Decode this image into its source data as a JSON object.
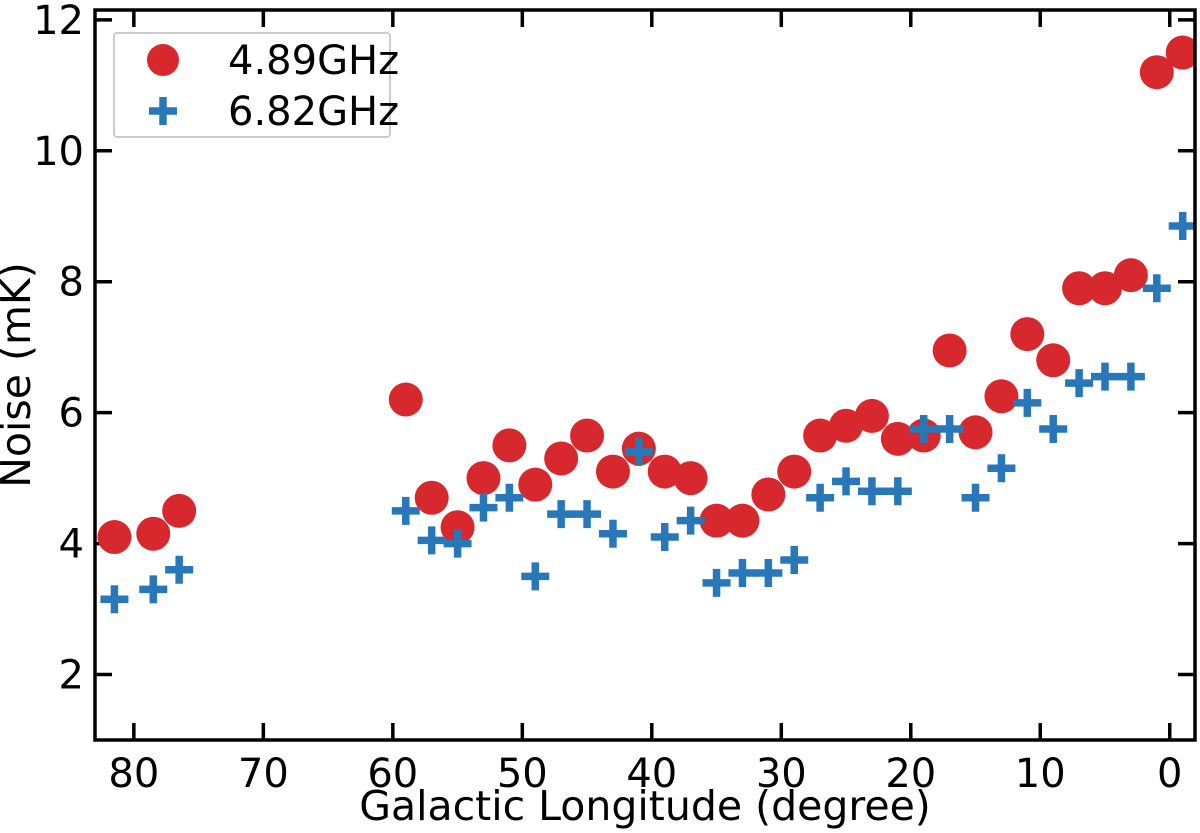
{
  "chart_data": {
    "type": "scatter",
    "title": "",
    "xlabel": "Galactic Longitude (degree)",
    "ylabel": "Noise (mK)",
    "x_ticks": [
      80,
      70,
      60,
      50,
      40,
      30,
      20,
      10,
      0
    ],
    "y_ticks": [
      2,
      4,
      6,
      8,
      10,
      12
    ],
    "xlim": [
      83.0,
      -1.95
    ],
    "ylim": [
      1.0,
      12.15
    ],
    "x_axis_reversed": true,
    "grid": false,
    "legend_position": "upper-left",
    "colors": {
      "red_series": "#d7282d",
      "blue_series": "#2878b9",
      "axis": "#000000",
      "legend_border": "#cccccc",
      "background": "#ffffff"
    },
    "series": [
      {
        "name": "4.89GHz",
        "marker": "circle",
        "color_key": "red_series",
        "points": [
          [
            81.5,
            4.1
          ],
          [
            78.5,
            4.15
          ],
          [
            76.5,
            4.5
          ],
          [
            59,
            6.2
          ],
          [
            57,
            4.7
          ],
          [
            55,
            4.25
          ],
          [
            53,
            5.0
          ],
          [
            51,
            5.5
          ],
          [
            49,
            4.9
          ],
          [
            47,
            5.3
          ],
          [
            45,
            5.65
          ],
          [
            43,
            5.1
          ],
          [
            41,
            5.45
          ],
          [
            39,
            5.1
          ],
          [
            37,
            5.0
          ],
          [
            35,
            4.35
          ],
          [
            33,
            4.35
          ],
          [
            31,
            4.75
          ],
          [
            29,
            5.1
          ],
          [
            27,
            5.65
          ],
          [
            25,
            5.8
          ],
          [
            23,
            5.95
          ],
          [
            21,
            5.6
          ],
          [
            19,
            5.65
          ],
          [
            17,
            6.95
          ],
          [
            15,
            5.7
          ],
          [
            13,
            6.25
          ],
          [
            11,
            7.2
          ],
          [
            9,
            6.8
          ],
          [
            7,
            7.9
          ],
          [
            5,
            7.9
          ],
          [
            3,
            8.1
          ],
          [
            1,
            11.2
          ],
          [
            -1,
            11.5
          ]
        ]
      },
      {
        "name": "6.82GHz",
        "marker": "plus",
        "color_key": "blue_series",
        "points": [
          [
            81.5,
            3.15
          ],
          [
            78.5,
            3.3
          ],
          [
            76.5,
            3.6
          ],
          [
            59,
            4.5
          ],
          [
            57,
            4.05
          ],
          [
            55,
            4.0
          ],
          [
            53,
            4.55
          ],
          [
            51,
            4.7
          ],
          [
            49,
            3.5
          ],
          [
            47,
            4.45
          ],
          [
            45,
            4.45
          ],
          [
            43,
            4.15
          ],
          [
            41,
            5.4
          ],
          [
            39,
            4.1
          ],
          [
            37,
            4.35
          ],
          [
            35,
            3.4
          ],
          [
            33,
            3.55
          ],
          [
            31,
            3.55
          ],
          [
            29,
            3.75
          ],
          [
            27,
            4.7
          ],
          [
            25,
            4.95
          ],
          [
            23,
            4.8
          ],
          [
            21,
            4.8
          ],
          [
            19,
            5.75
          ],
          [
            17,
            5.75
          ],
          [
            15,
            4.7
          ],
          [
            13,
            5.15
          ],
          [
            11,
            6.15
          ],
          [
            9,
            5.75
          ],
          [
            7,
            6.45
          ],
          [
            5,
            6.55
          ],
          [
            3,
            6.55
          ],
          [
            1,
            7.9
          ],
          [
            -1,
            8.85
          ]
        ]
      }
    ]
  }
}
